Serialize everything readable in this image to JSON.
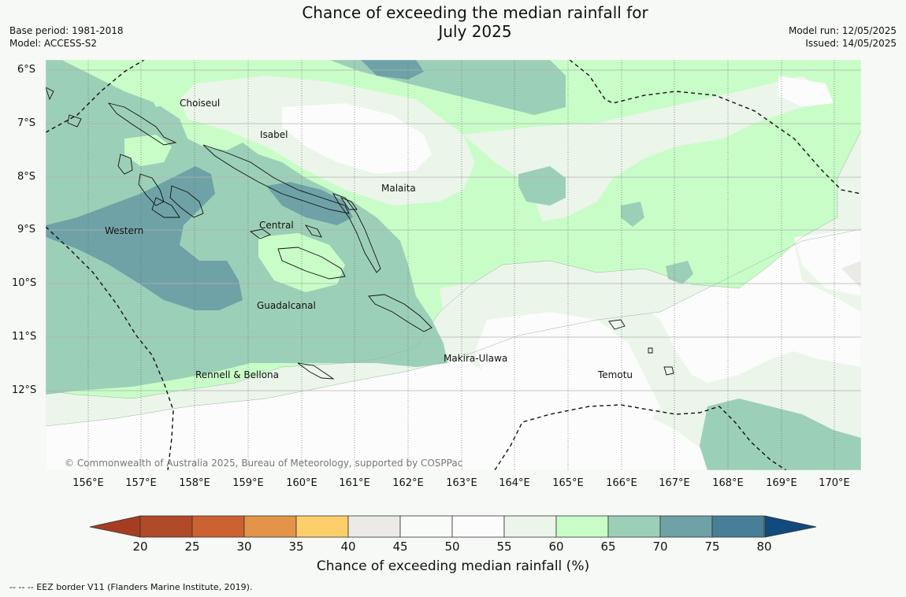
{
  "title": {
    "line1": "Chance of exceeding the median rainfall for",
    "line2": "July 2025"
  },
  "meta": {
    "base_period": "Base period: 1981-2018",
    "model": "Model: ACCESS-S2",
    "model_run": "Model run: 12/05/2025",
    "issued": "Issued: 14/05/2025"
  },
  "map": {
    "lat_labels": [
      "6°S",
      "7°S",
      "8°S",
      "9°S",
      "10°S",
      "11°S",
      "12°S"
    ],
    "lon_labels": [
      "156°E",
      "157°E",
      "158°E",
      "159°E",
      "160°E",
      "161°E",
      "162°E",
      "163°E",
      "164°E",
      "165°E",
      "166°E",
      "167°E",
      "168°E",
      "169°E",
      "170°E"
    ],
    "region_labels": [
      "Choiseul",
      "Isabel",
      "Malaita",
      "Western",
      "Central",
      "Guadalcanal",
      "Makira-Ulawa",
      "Rennell & Bellona",
      "Temotu"
    ],
    "copyright": "© Commonwealth of Australia 2025, Bureau of Meteorology, supported by COSPPac"
  },
  "legend": {
    "ticks": [
      "20",
      "25",
      "30",
      "35",
      "40",
      "45",
      "50",
      "55",
      "60",
      "65",
      "70",
      "75",
      "80"
    ],
    "colors": [
      "#a63d22",
      "#b04a28",
      "#cc6232",
      "#e39448",
      "#fdcf6a",
      "#ebeae6",
      "#f9fbf9",
      "#fbfcfb",
      "#ebf5ea",
      "#c8fdc8",
      "#9ccfb7",
      "#6fa2a6",
      "#477f98",
      "#114a7d"
    ],
    "title": "Chance of exceeding median rainfall (%)"
  },
  "footnote": "--  --  -- EEZ border V11 (Flanders Marine Institute, 2019)."
}
